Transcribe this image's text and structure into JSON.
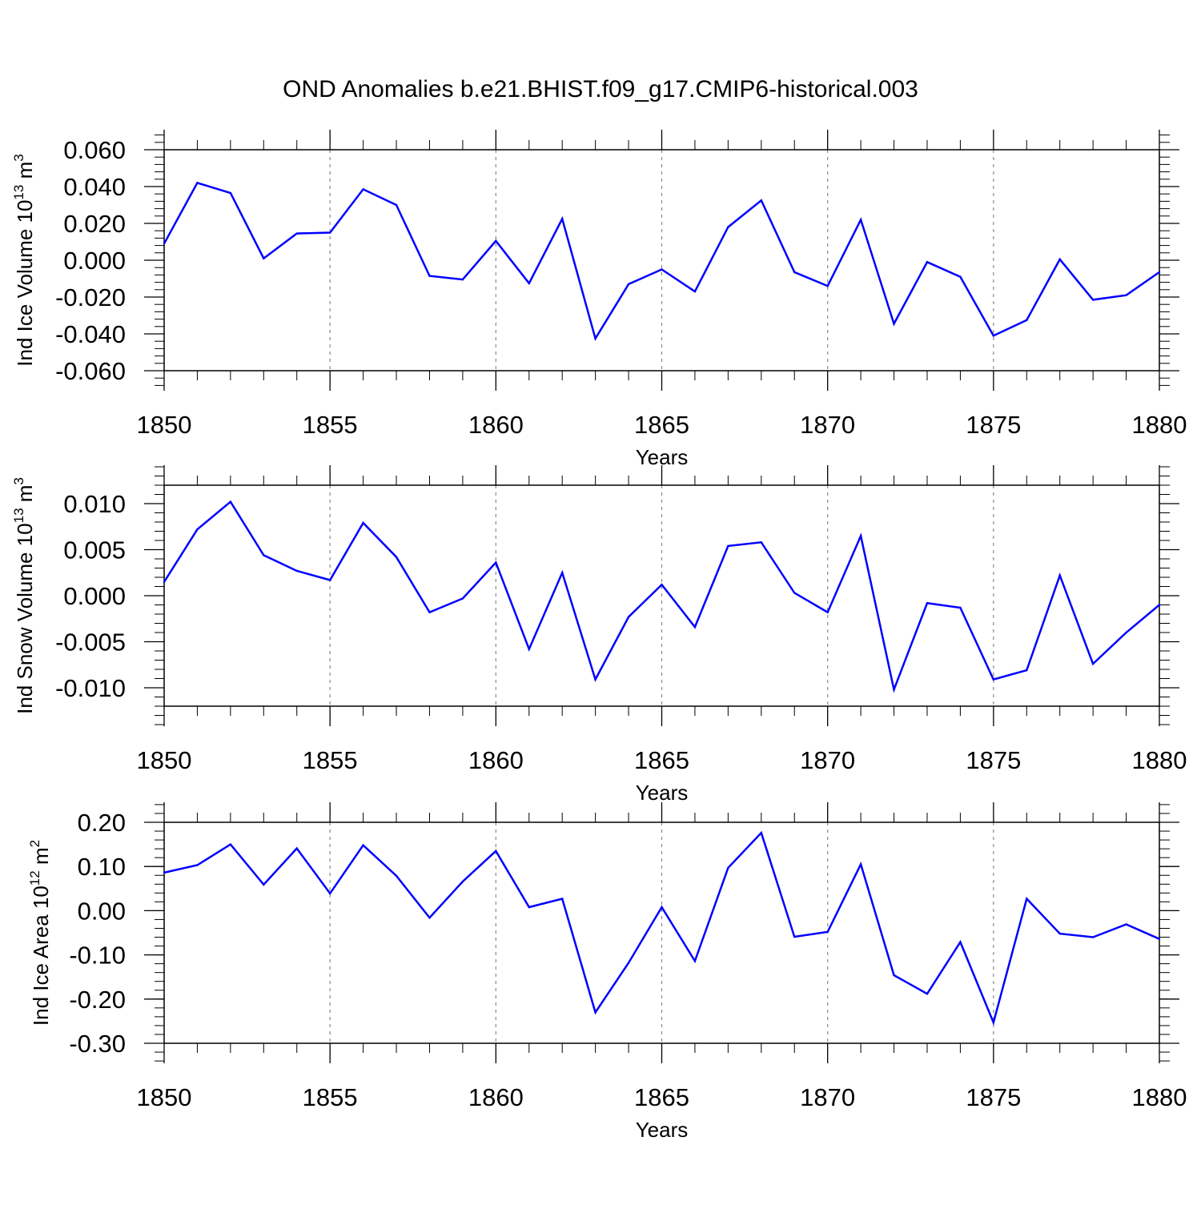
{
  "title": "OND Anomalies b.e21.BHIST.f09_g17.CMIP6-historical.003",
  "colors": {
    "line": "#0000ff",
    "axis": "#000000",
    "grid": "#888888"
  },
  "chart_data": [
    {
      "type": "line",
      "xlabel": "Years",
      "ylabel": "Ind Ice Volume 10",
      "ylabel_exp": "13",
      "ylabel_unit": " m",
      "ylabel_unit_exp": "3",
      "xlim": [
        1850,
        1880
      ],
      "ylim": [
        -0.06,
        0.06
      ],
      "xticks": [
        "1850",
        "1855",
        "1860",
        "1865",
        "1870",
        "1875",
        "1880"
      ],
      "yticks": [
        "0.060",
        "0.040",
        "0.020",
        "0.000",
        "-0.020",
        "-0.040",
        "-0.060"
      ],
      "ytick_values": [
        0.06,
        0.04,
        0.02,
        0.0,
        -0.02,
        -0.04,
        -0.06
      ],
      "x": [
        1850,
        1851,
        1852,
        1853,
        1854,
        1855,
        1856,
        1857,
        1858,
        1859,
        1860,
        1861,
        1862,
        1863,
        1864,
        1865,
        1866,
        1867,
        1868,
        1869,
        1870,
        1871,
        1872,
        1873,
        1874,
        1875,
        1876,
        1877,
        1878,
        1879,
        1880
      ],
      "values": [
        0.009,
        0.042,
        0.0365,
        0.001,
        0.0145,
        0.015,
        0.0385,
        0.03,
        -0.0085,
        -0.0105,
        0.0105,
        -0.0125,
        0.0225,
        -0.0425,
        -0.013,
        -0.005,
        -0.017,
        0.018,
        0.0325,
        -0.0065,
        -0.014,
        0.022,
        -0.0345,
        -0.001,
        -0.009,
        -0.041,
        -0.0325,
        0.0005,
        -0.0215,
        -0.019,
        -0.0065
      ]
    },
    {
      "type": "line",
      "xlabel": "Years",
      "ylabel": "Ind Snow Volume 10",
      "ylabel_exp": "13",
      "ylabel_unit": " m",
      "ylabel_unit_exp": "3",
      "xlim": [
        1850,
        1880
      ],
      "ylim": [
        -0.012,
        0.012
      ],
      "xticks": [
        "1850",
        "1855",
        "1860",
        "1865",
        "1870",
        "1875",
        "1880"
      ],
      "yticks": [
        "0.010",
        "0.005",
        "0.000",
        "-0.005",
        "-0.010"
      ],
      "ytick_values": [
        0.01,
        0.005,
        0.0,
        -0.005,
        -0.01
      ],
      "x": [
        1850,
        1851,
        1852,
        1853,
        1854,
        1855,
        1856,
        1857,
        1858,
        1859,
        1860,
        1861,
        1862,
        1863,
        1864,
        1865,
        1866,
        1867,
        1868,
        1869,
        1870,
        1871,
        1872,
        1873,
        1874,
        1875,
        1876,
        1877,
        1878,
        1879,
        1880
      ],
      "values": [
        0.0015,
        0.0072,
        0.0102,
        0.0044,
        0.0027,
        0.0017,
        0.0079,
        0.0042,
        -0.0018,
        -0.0003,
        0.0036,
        -0.0058,
        0.0025,
        -0.0091,
        -0.0023,
        0.0012,
        -0.0034,
        0.0054,
        0.0058,
        0.0003,
        -0.0018,
        0.0065,
        -0.0102,
        -0.0008,
        -0.0013,
        -0.0091,
        -0.0081,
        0.0022,
        -0.0074,
        -0.004,
        -0.001
      ]
    },
    {
      "type": "line",
      "xlabel": "Years",
      "ylabel": "Ind Ice Area 10",
      "ylabel_exp": "12",
      "ylabel_unit": " m",
      "ylabel_unit_exp": "2",
      "xlim": [
        1850,
        1880
      ],
      "ylim": [
        -0.3,
        0.2
      ],
      "xticks": [
        "1850",
        "1855",
        "1860",
        "1865",
        "1870",
        "1875",
        "1880"
      ],
      "yticks": [
        "0.20",
        "0.10",
        "0.00",
        "-0.10",
        "-0.20",
        "-0.30"
      ],
      "ytick_values": [
        0.2,
        0.1,
        0.0,
        -0.1,
        -0.2,
        -0.3
      ],
      "x": [
        1850,
        1851,
        1852,
        1853,
        1854,
        1855,
        1856,
        1857,
        1858,
        1859,
        1860,
        1861,
        1862,
        1863,
        1864,
        1865,
        1866,
        1867,
        1868,
        1869,
        1870,
        1871,
        1872,
        1873,
        1874,
        1875,
        1876,
        1877,
        1878,
        1879,
        1880
      ],
      "values": [
        0.086,
        0.103,
        0.15,
        0.059,
        0.141,
        0.039,
        0.148,
        0.079,
        -0.016,
        0.066,
        0.135,
        0.008,
        0.027,
        -0.23,
        -0.118,
        0.008,
        -0.114,
        0.097,
        0.176,
        -0.059,
        -0.048,
        0.105,
        -0.146,
        -0.188,
        -0.071,
        -0.253,
        0.027,
        -0.052,
        -0.06,
        -0.031,
        -0.064
      ]
    }
  ]
}
